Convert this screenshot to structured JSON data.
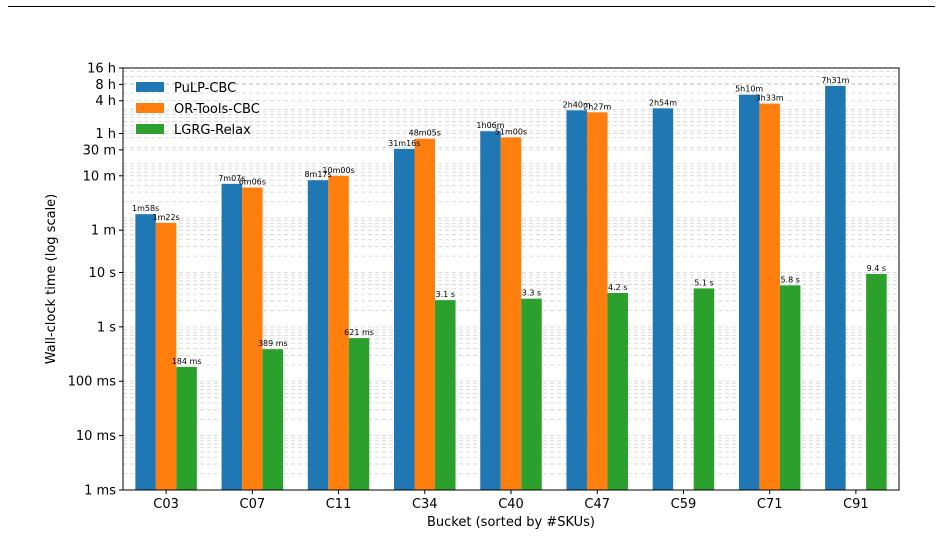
{
  "chart_data": {
    "type": "bar",
    "xlabel": "Bucket (sorted by #SKUs)",
    "ylabel": "Wall-clock time (log scale)",
    "yscale": "log",
    "unit": "seconds",
    "ylim": [
      0.001,
      57600
    ],
    "grid": "horizontal dashed (major and minor)",
    "legend_position": "upper-left",
    "categories": [
      "C03",
      "C07",
      "C11",
      "C34",
      "C40",
      "C47",
      "C59",
      "C71",
      "C91"
    ],
    "yticks": [
      {
        "value": 0.001,
        "label": "1 ms"
      },
      {
        "value": 0.01,
        "label": "10 ms"
      },
      {
        "value": 0.1,
        "label": "100 ms"
      },
      {
        "value": 1,
        "label": "1 s"
      },
      {
        "value": 10,
        "label": "10 s"
      },
      {
        "value": 60,
        "label": "1 m"
      },
      {
        "value": 600,
        "label": "10 m"
      },
      {
        "value": 1800,
        "label": "30 m"
      },
      {
        "value": 3600,
        "label": "1 h"
      },
      {
        "value": 14400,
        "label": "4 h"
      },
      {
        "value": 28800,
        "label": "8 h"
      },
      {
        "value": 57600,
        "label": "16 h"
      }
    ],
    "series": [
      {
        "name": "PuLP-CBC",
        "color": "#1f77b4",
        "values": [
          118,
          427,
          497,
          1876,
          3960,
          9600,
          10440,
          18600,
          27060
        ],
        "labels": [
          "1m58s",
          "7m07s",
          "8m17s",
          "31m16s",
          "1h06m",
          "2h40m",
          "2h54m",
          "5h10m",
          "7h31m"
        ]
      },
      {
        "name": "OR-Tools-CBC",
        "color": "#ff7f0e",
        "values": [
          82,
          366,
          600,
          2885,
          3060,
          8820,
          null,
          12780,
          null
        ],
        "labels": [
          "1m22s",
          "6m06s",
          "10m00s",
          "48m05s",
          "51m00s",
          "2h27m",
          null,
          "3h33m",
          null
        ]
      },
      {
        "name": "LGRG-Relax",
        "color": "#2ca02c",
        "values": [
          0.184,
          0.389,
          0.621,
          3.1,
          3.3,
          4.2,
          5.1,
          5.8,
          9.4
        ],
        "labels": [
          "184 ms",
          "389 ms",
          "621 ms",
          "3.1 s",
          "3.3 s",
          "4.2 s",
          "5.1 s",
          "5.8 s",
          "9.4 s"
        ]
      }
    ]
  }
}
